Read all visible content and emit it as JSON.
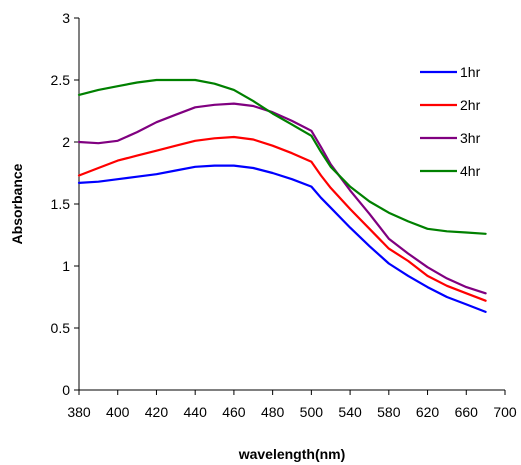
{
  "chart_data": {
    "type": "line",
    "title": "",
    "xlabel": "wavelength(nm)",
    "ylabel": "Absorbance",
    "xlim": [
      380,
      700
    ],
    "ylim": [
      0,
      3
    ],
    "x_tick_labels": [
      "380",
      "400",
      "420",
      "440",
      "460",
      "480",
      "500",
      "540",
      "580",
      "620",
      "660",
      "700"
    ],
    "y_ticks": [
      0,
      0.5,
      1,
      1.5,
      2,
      2.5,
      3
    ],
    "y_tick_labels": [
      "0",
      "0.5",
      "1",
      "1.5",
      "2",
      "2.5",
      "3"
    ],
    "grid": false,
    "legend_position": "top-right",
    "series": [
      {
        "name": "1hr",
        "color": "#0000ff",
        "points": [
          [
            380,
            1.67
          ],
          [
            390,
            1.68
          ],
          [
            400,
            1.7
          ],
          [
            410,
            1.72
          ],
          [
            420,
            1.74
          ],
          [
            430,
            1.77
          ],
          [
            440,
            1.8
          ],
          [
            450,
            1.81
          ],
          [
            460,
            1.81
          ],
          [
            470,
            1.79
          ],
          [
            480,
            1.75
          ],
          [
            490,
            1.7
          ],
          [
            500,
            1.64
          ],
          [
            510,
            1.55
          ],
          [
            520,
            1.47
          ],
          [
            540,
            1.31
          ],
          [
            560,
            1.16
          ],
          [
            580,
            1.02
          ],
          [
            600,
            0.92
          ],
          [
            620,
            0.83
          ],
          [
            640,
            0.75
          ],
          [
            660,
            0.69
          ],
          [
            680,
            0.63
          ]
        ]
      },
      {
        "name": "2hr",
        "color": "#ff0000",
        "points": [
          [
            380,
            1.73
          ],
          [
            390,
            1.79
          ],
          [
            400,
            1.85
          ],
          [
            410,
            1.89
          ],
          [
            420,
            1.93
          ],
          [
            430,
            1.97
          ],
          [
            440,
            2.01
          ],
          [
            450,
            2.03
          ],
          [
            460,
            2.04
          ],
          [
            470,
            2.02
          ],
          [
            480,
            1.97
          ],
          [
            490,
            1.91
          ],
          [
            500,
            1.84
          ],
          [
            510,
            1.73
          ],
          [
            520,
            1.63
          ],
          [
            540,
            1.46
          ],
          [
            560,
            1.3
          ],
          [
            580,
            1.14
          ],
          [
            600,
            1.04
          ],
          [
            620,
            0.92
          ],
          [
            640,
            0.84
          ],
          [
            660,
            0.78
          ],
          [
            680,
            0.72
          ]
        ]
      },
      {
        "name": "3hr",
        "color": "#800080",
        "points": [
          [
            380,
            2.0
          ],
          [
            390,
            1.99
          ],
          [
            400,
            2.01
          ],
          [
            410,
            2.08
          ],
          [
            420,
            2.16
          ],
          [
            430,
            2.22
          ],
          [
            440,
            2.28
          ],
          [
            450,
            2.3
          ],
          [
            460,
            2.31
          ],
          [
            470,
            2.29
          ],
          [
            480,
            2.24
          ],
          [
            490,
            2.17
          ],
          [
            500,
            2.09
          ],
          [
            510,
            1.96
          ],
          [
            520,
            1.82
          ],
          [
            540,
            1.61
          ],
          [
            560,
            1.42
          ],
          [
            580,
            1.22
          ],
          [
            600,
            1.1
          ],
          [
            620,
            0.99
          ],
          [
            640,
            0.9
          ],
          [
            660,
            0.83
          ],
          [
            680,
            0.78
          ]
        ]
      },
      {
        "name": "4hr",
        "color": "#008000",
        "points": [
          [
            380,
            2.38
          ],
          [
            390,
            2.42
          ],
          [
            400,
            2.45
          ],
          [
            410,
            2.48
          ],
          [
            420,
            2.5
          ],
          [
            430,
            2.5
          ],
          [
            440,
            2.5
          ],
          [
            450,
            2.47
          ],
          [
            460,
            2.42
          ],
          [
            470,
            2.33
          ],
          [
            480,
            2.23
          ],
          [
            490,
            2.14
          ],
          [
            500,
            2.05
          ],
          [
            510,
            1.92
          ],
          [
            520,
            1.8
          ],
          [
            540,
            1.64
          ],
          [
            560,
            1.52
          ],
          [
            580,
            1.43
          ],
          [
            600,
            1.36
          ],
          [
            620,
            1.3
          ],
          [
            640,
            1.28
          ],
          [
            660,
            1.27
          ],
          [
            680,
            1.26
          ]
        ]
      }
    ]
  }
}
